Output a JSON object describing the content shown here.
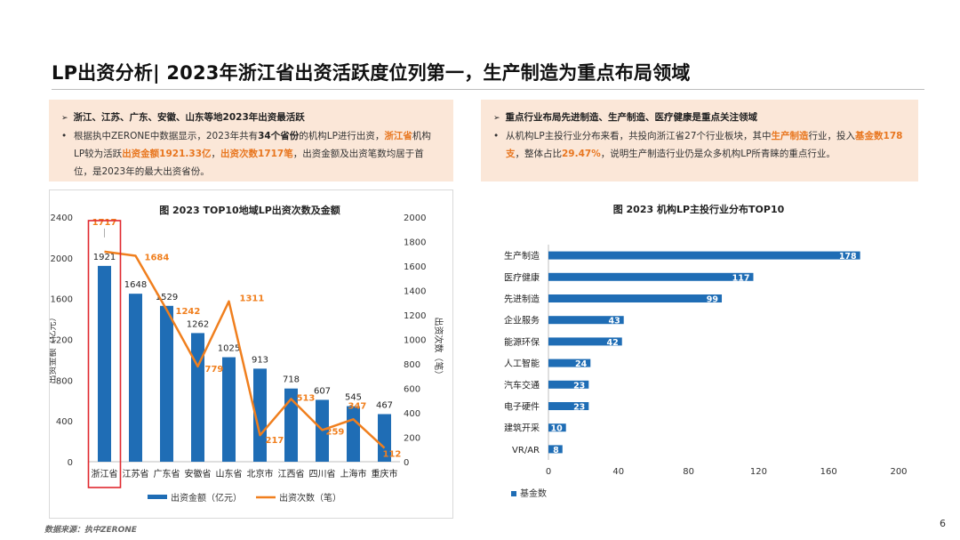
{
  "title": "LP出资分析| 2023年浙江省出资活跃度位列第一，生产制造为重点布局领域",
  "left_box": {
    "head": "浙江、江苏、广东、安徽、山东等地2023年出资最活跃",
    "p1": "根据执中ZERONE中数据显示，2023年共有",
    "p2": "34个省份",
    "p3": "的机构LP进行出资，",
    "p4": "浙江省",
    "p5": "机构LP较为活跃",
    "p6": "出资金额1921.33亿",
    "p7": "，",
    "p8": "出资次数1717笔",
    "p9": "，出资金额及出资笔数均居于首位，是2023年的最大出资省份。"
  },
  "right_box": {
    "head": "重点行业布局先进制造、生产制造、医疗健康是重点关注领域",
    "p1": "从机构LP主投行业分布来看，共投向浙江省27个行业板块，其中",
    "p2": "生产制造",
    "p3": "行业，投入",
    "p4": "基金数178支",
    "p5": "，整体占比",
    "p6": "29.47%",
    "p7": "，说明生产制造行业仍是众多机构LP所青睐的重点行业。"
  },
  "chart_data": [
    {
      "type": "bar+line",
      "title": "图 2023 TOP10地域LP出资次数及金额",
      "categories": [
        "浙江省",
        "江苏省",
        "广东省",
        "安徽省",
        "山东省",
        "北京市",
        "江西省",
        "四川省",
        "上海市",
        "重庆市"
      ],
      "series": [
        {
          "name": "出资金额（亿元）",
          "type": "bar",
          "axis": "left",
          "values": [
            1921,
            1648,
            1529,
            1262,
            1025,
            913,
            718,
            607,
            545,
            467
          ]
        },
        {
          "name": "出资次数（笔）",
          "type": "line",
          "axis": "right",
          "values": [
            1717,
            1684,
            1242,
            779,
            1311,
            217,
            513,
            259,
            347,
            112
          ]
        }
      ],
      "ylabel_left": "出资金额（亿元）",
      "ylabel_right": "出资次数（笔）",
      "ylim_left": [
        0,
        2400
      ],
      "ylim_right": [
        0,
        2000
      ],
      "yticks_left": [
        0,
        400,
        800,
        1200,
        1600,
        2000,
        2400
      ],
      "yticks_right": [
        0,
        200,
        400,
        600,
        800,
        1000,
        1200,
        1400,
        1600,
        1800,
        2000
      ],
      "bar_color": "#1f6db5",
      "line_color": "#f07f1e",
      "highlight_color": "#e0282e",
      "legend_placement": "bottom"
    },
    {
      "type": "bar",
      "orientation": "horizontal",
      "title": "图 2023 机构LP主投行业分布TOP10",
      "categories": [
        "生产制造",
        "医疗健康",
        "先进制造",
        "企业服务",
        "能源环保",
        "人工智能",
        "汽车交通",
        "电子硬件",
        "建筑开采",
        "VR/AR"
      ],
      "series": [
        {
          "name": "基金数",
          "values": [
            178,
            117,
            99,
            43,
            42,
            24,
            23,
            23,
            10,
            8
          ]
        }
      ],
      "xlim": [
        0,
        200
      ],
      "xticks": [
        0,
        40,
        80,
        120,
        160,
        200
      ],
      "bar_color": "#1f6db5",
      "legend_placement": "bottom-left"
    }
  ],
  "source": "数据来源：执中ZERONE",
  "page_number": "6"
}
